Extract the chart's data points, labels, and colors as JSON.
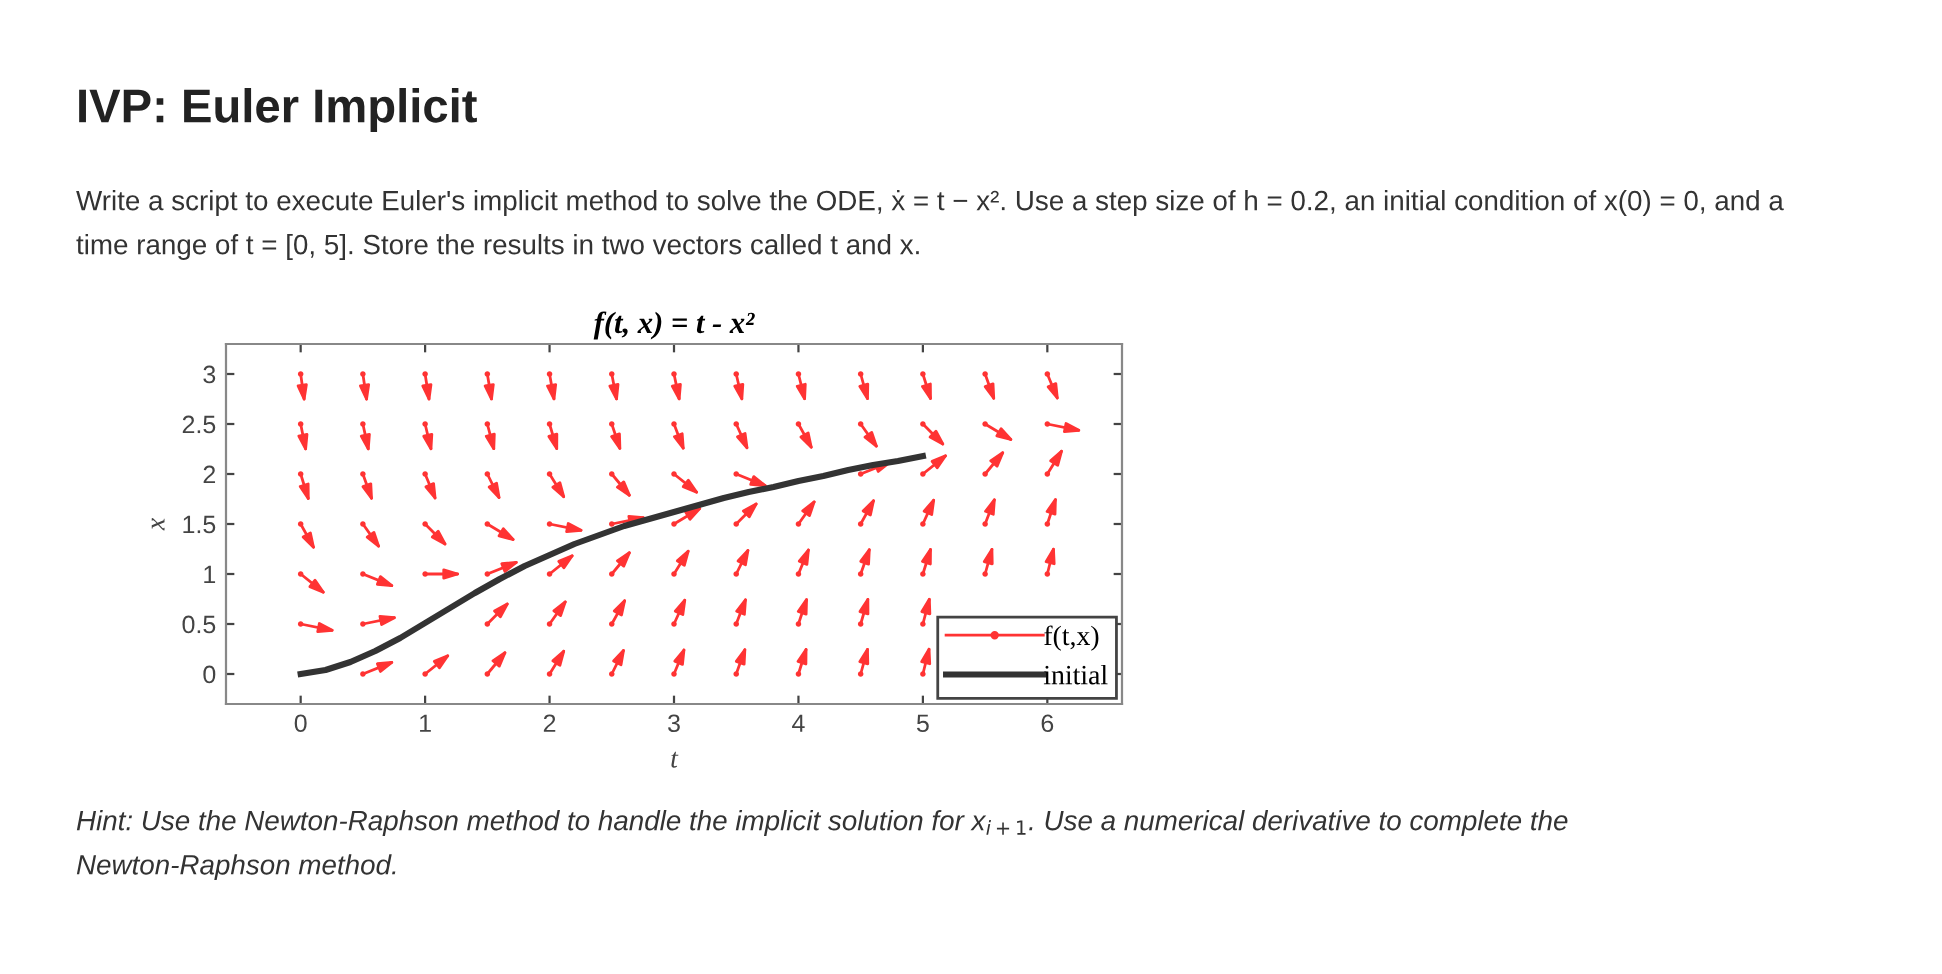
{
  "chart_data": {
    "type": "line",
    "title": "IVP: Euler Implicit",
    "subtitle": "Write a script to execute Euler's implicit method to solve the ODE, ẋ = t − x². Use a step size of h = 0.2, an initial condition of x(0) = 0, and a time range of t = [0, 5]. Store the results in two vectors called t and x.",
    "annotations": [
      "f(t, x) = t - x²",
      "Hint: Use the Newton-Raphson method to handle the implicit solution for x$_{i+1}$. Use a numerical derivative to complete the Newton-Raphson method."
    ],
    "xlabel": "t",
    "ylabel": "x",
    "series": [
      {
        "name": "f(t,x)",
        "type": "scatter",
        "color": "#ff3333",
        "x": [
          0.5,
          1,
          1.5,
          2,
          2.5,
          3,
          3.5,
          4,
          4.5,
          5,
          0,
          0.5,
          1.5,
          2,
          2.5,
          3,
          3.5,
          4,
          4.5,
          5,
          0,
          0.5,
          1,
          1.5,
          2,
          2.5,
          3,
          3.5,
          4,
          4.5,
          5,
          5.5,
          6,
          0,
          0.5,
          1,
          1.5,
          2,
          2.5,
          3,
          3.5,
          4,
          4.5,
          5,
          5.5,
          6,
          0,
          0.5,
          1,
          1.5,
          2,
          2.5,
          3,
          3.5,
          4.5,
          5,
          5.5,
          6,
          0,
          0.5,
          1,
          1.5,
          2,
          2.5,
          3,
          3.5,
          4,
          4.5,
          5,
          5.5,
          6,
          0,
          0.5,
          1,
          1.5,
          2,
          2.5,
          3,
          3.5,
          4,
          4.5,
          5,
          5.5,
          6
        ],
        "values": [
          0,
          0,
          0,
          0,
          0,
          0,
          0,
          0,
          0,
          0,
          0.5,
          0.5,
          0.5,
          0.5,
          0.5,
          0.5,
          0.5,
          0.5,
          0.5,
          0.5,
          1,
          1,
          1,
          1,
          1,
          1,
          1,
          1,
          1,
          1,
          1,
          1,
          1,
          1.5,
          1.5,
          1.5,
          1.5,
          1.5,
          1.5,
          1.5,
          1.5,
          1.5,
          1.5,
          1.5,
          1.5,
          1.5,
          2,
          2,
          2,
          2,
          2,
          2,
          2,
          2,
          2,
          2,
          2,
          2,
          2.5,
          2.5,
          2.5,
          2.5,
          2.5,
          2.5,
          2.5,
          2.5,
          2.5,
          2.5,
          2.5,
          2.5,
          2.5,
          3,
          3,
          3,
          3,
          3,
          3,
          3,
          3,
          3,
          3,
          3,
          3,
          3
        ]
      },
      {
        "name": "initial",
        "color": "#333333",
        "x": [
          0,
          0.2,
          0.4,
          0.6,
          0.8,
          1.0,
          1.2,
          1.4,
          1.6,
          1.8,
          2.0,
          2.2,
          2.4,
          2.6,
          2.8,
          3.0,
          3.2,
          3.4,
          3.6,
          3.8,
          4.0,
          4.2,
          4.4,
          4.6,
          4.8,
          5.0
        ],
        "values": [
          0,
          0.04,
          0.12,
          0.23,
          0.36,
          0.51,
          0.66,
          0.81,
          0.95,
          1.08,
          1.19,
          1.3,
          1.39,
          1.48,
          1.55,
          1.62,
          1.69,
          1.76,
          1.82,
          1.87,
          1.93,
          1.98,
          2.04,
          2.09,
          2.13,
          2.18
        ]
      }
    ],
    "xlim": [
      -0.6,
      6.6
    ],
    "ylim": [
      -0.3,
      3.3
    ],
    "xticks": [
      0,
      1,
      2,
      3,
      4,
      5,
      6
    ],
    "yticks": [
      0,
      0.5,
      1,
      1.5,
      2,
      2.5,
      3
    ],
    "legend": "bottom right",
    "grid": false
  }
}
